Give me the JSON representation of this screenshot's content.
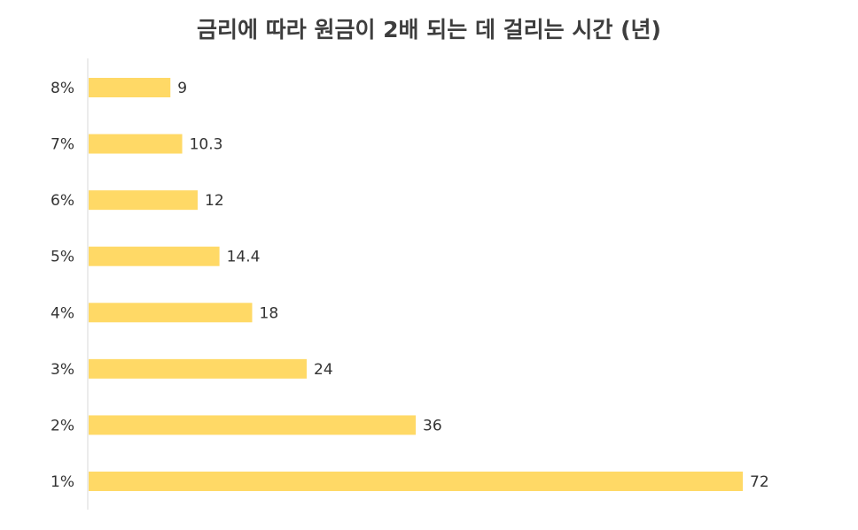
{
  "chart_data": {
    "type": "bar",
    "orientation": "horizontal",
    "title": "금리에 따라 원금이 2배 되는 데 걸리는 시간 (년)",
    "xlabel": "",
    "ylabel": "",
    "categories": [
      "8%",
      "7%",
      "6%",
      "5%",
      "4%",
      "3%",
      "2%",
      "1%"
    ],
    "values": [
      9,
      10.3,
      12,
      14.4,
      18,
      24,
      36,
      72
    ],
    "data_labels": [
      "9",
      "10.3",
      "12",
      "14.4",
      "18",
      "24",
      "36",
      "72"
    ],
    "xlim": [
      0,
      72
    ],
    "bar_color": "#FFD966",
    "axis_color": "#d9d9d9",
    "grid": false,
    "legend": "none"
  }
}
